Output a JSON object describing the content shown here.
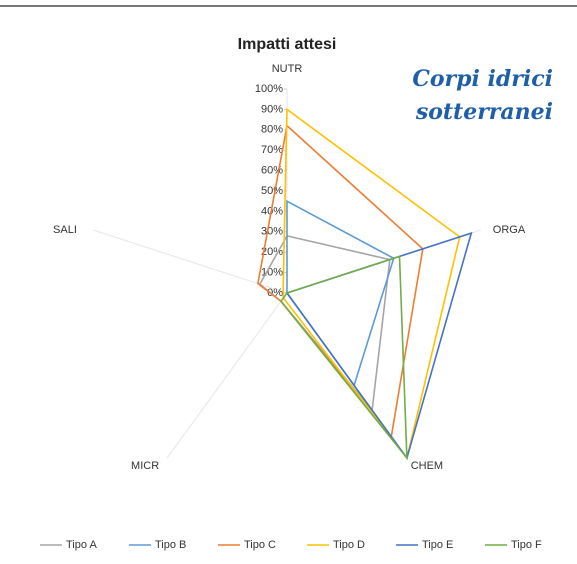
{
  "chart_data": {
    "type": "radar",
    "title": "Impatti attesi",
    "annotation": [
      "Corpi idrici",
      "sotterranei"
    ],
    "categories": [
      "NUTR",
      "ORGA",
      "CHEM",
      "MICR",
      "SALI"
    ],
    "rlim": [
      0,
      100
    ],
    "rticks": [
      {
        "value": 0,
        "label": "0%"
      },
      {
        "value": 10,
        "label": "10%"
      },
      {
        "value": 20,
        "label": "20%"
      },
      {
        "value": 30,
        "label": "30%"
      },
      {
        "value": 40,
        "label": "40%"
      },
      {
        "value": 50,
        "label": "50%"
      },
      {
        "value": 60,
        "label": "60%"
      },
      {
        "value": 70,
        "label": "70%"
      },
      {
        "value": 80,
        "label": "80%"
      },
      {
        "value": 90,
        "label": "90%"
      },
      {
        "value": 100,
        "label": "100%"
      }
    ],
    "series": [
      {
        "name": "Tipo A",
        "color": "#a5a5a5",
        "values": [
          28,
          53,
          71,
          5,
          14
        ]
      },
      {
        "name": "Tipo B",
        "color": "#5b9bd5",
        "values": [
          45,
          55,
          56,
          0,
          0
        ]
      },
      {
        "name": "Tipo C",
        "color": "#ed7d31",
        "values": [
          82,
          70,
          87,
          5,
          15
        ]
      },
      {
        "name": "Tipo D",
        "color": "#ffc000",
        "values": [
          90,
          89,
          100,
          3,
          2
        ]
      },
      {
        "name": "Tipo E",
        "color": "#4472c4",
        "values": [
          0,
          95,
          100,
          0,
          0
        ]
      },
      {
        "name": "Tipo F",
        "color": "#70ad47",
        "values": [
          0,
          58,
          100,
          5,
          0
        ]
      }
    ]
  }
}
